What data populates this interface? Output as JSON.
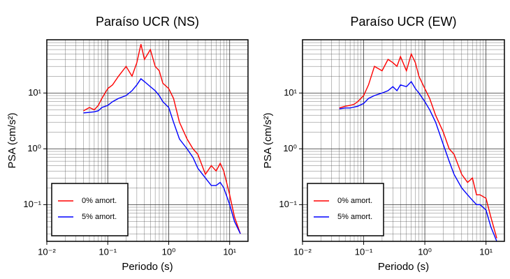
{
  "chart_data": [
    {
      "type": "line",
      "title": "Paraíso UCR (NS)",
      "x_label": "Periodo (s)",
      "y_label": "PSA (cm/s²)",
      "log_x": true,
      "log_y": true,
      "grid": true,
      "legend": "lower left",
      "xlim": [
        0.01,
        20
      ],
      "ylim": [
        0.022,
        90
      ],
      "xticks": [
        {
          "value": 0.01,
          "label": "10⁻²"
        },
        {
          "value": 0.1,
          "label": "10⁻¹"
        },
        {
          "value": 1,
          "label": "10⁰"
        },
        {
          "value": 10,
          "label": "10¹"
        }
      ],
      "yticks": [
        {
          "value": 0.1,
          "label": "10⁻¹"
        },
        {
          "value": 1,
          "label": "10⁰"
        },
        {
          "value": 10,
          "label": "10¹"
        }
      ],
      "x": [
        0.04,
        0.05,
        0.06,
        0.07,
        0.08,
        0.1,
        0.12,
        0.15,
        0.2,
        0.25,
        0.3,
        0.35,
        0.4,
        0.5,
        0.6,
        0.7,
        0.8,
        1.0,
        1.2,
        1.5,
        2,
        2.5,
        3,
        4,
        5,
        6,
        7,
        8,
        10,
        12,
        15
      ],
      "series": [
        {
          "name": "0% amort.",
          "color": "#ff0000",
          "values": [
            4.8,
            5.5,
            5,
            6,
            8,
            12,
            14,
            20,
            30,
            20,
            35,
            75,
            40,
            60,
            30,
            25,
            15,
            12,
            8,
            3,
            1.5,
            1,
            0.8,
            0.35,
            0.5,
            0.4,
            0.55,
            0.4,
            0.15,
            0.06,
            0.03
          ]
        },
        {
          "name": "5% amort.",
          "color": "#0000ff",
          "values": [
            4.4,
            4.5,
            4.6,
            4.8,
            5.5,
            6,
            7,
            8,
            9,
            11,
            14,
            18,
            16,
            13,
            11,
            9,
            7,
            5.5,
            3,
            1.5,
            1,
            0.7,
            0.45,
            0.3,
            0.22,
            0.22,
            0.25,
            0.2,
            0.1,
            0.05,
            0.03
          ]
        }
      ]
    },
    {
      "type": "line",
      "title": "Paraíso UCR (EW)",
      "x_label": "Periodo (s)",
      "y_label": "PSA (cm/s²)",
      "log_x": true,
      "log_y": true,
      "grid": true,
      "legend": "lower left",
      "xlim": [
        0.01,
        20
      ],
      "ylim": [
        0.022,
        90
      ],
      "xticks": [
        {
          "value": 0.01,
          "label": "10⁻²"
        },
        {
          "value": 0.1,
          "label": "10⁻¹"
        },
        {
          "value": 1,
          "label": "10⁰"
        },
        {
          "value": 10,
          "label": "10¹"
        }
      ],
      "yticks": [
        {
          "value": 0.1,
          "label": "10⁻¹"
        },
        {
          "value": 1,
          "label": "10⁰"
        },
        {
          "value": 10,
          "label": "10¹"
        }
      ],
      "x": [
        0.04,
        0.05,
        0.06,
        0.07,
        0.08,
        0.1,
        0.12,
        0.15,
        0.2,
        0.25,
        0.3,
        0.35,
        0.4,
        0.5,
        0.6,
        0.7,
        0.8,
        1.0,
        1.2,
        1.5,
        2,
        2.5,
        3,
        4,
        5,
        6,
        7,
        8,
        10,
        12,
        15
      ],
      "series": [
        {
          "name": "0% amort.",
          "color": "#ff0000",
          "values": [
            5.4,
            5.8,
            6,
            6.3,
            7,
            9,
            14,
            30,
            25,
            40,
            35,
            30,
            45,
            25,
            50,
            35,
            20,
            12,
            8,
            4,
            2,
            1,
            0.8,
            0.35,
            0.25,
            0.3,
            0.15,
            0.15,
            0.13,
            0.06,
            0.025
          ]
        },
        {
          "name": "5% amort.",
          "color": "#0000ff",
          "values": [
            5.2,
            5.4,
            5.4,
            5.6,
            5.8,
            6.5,
            8,
            9,
            10,
            11,
            13,
            11,
            14,
            13,
            16,
            12,
            10,
            7,
            5,
            3,
            1.2,
            0.6,
            0.35,
            0.2,
            0.15,
            0.12,
            0.1,
            0.1,
            0.08,
            0.04,
            0.022
          ]
        }
      ]
    }
  ]
}
